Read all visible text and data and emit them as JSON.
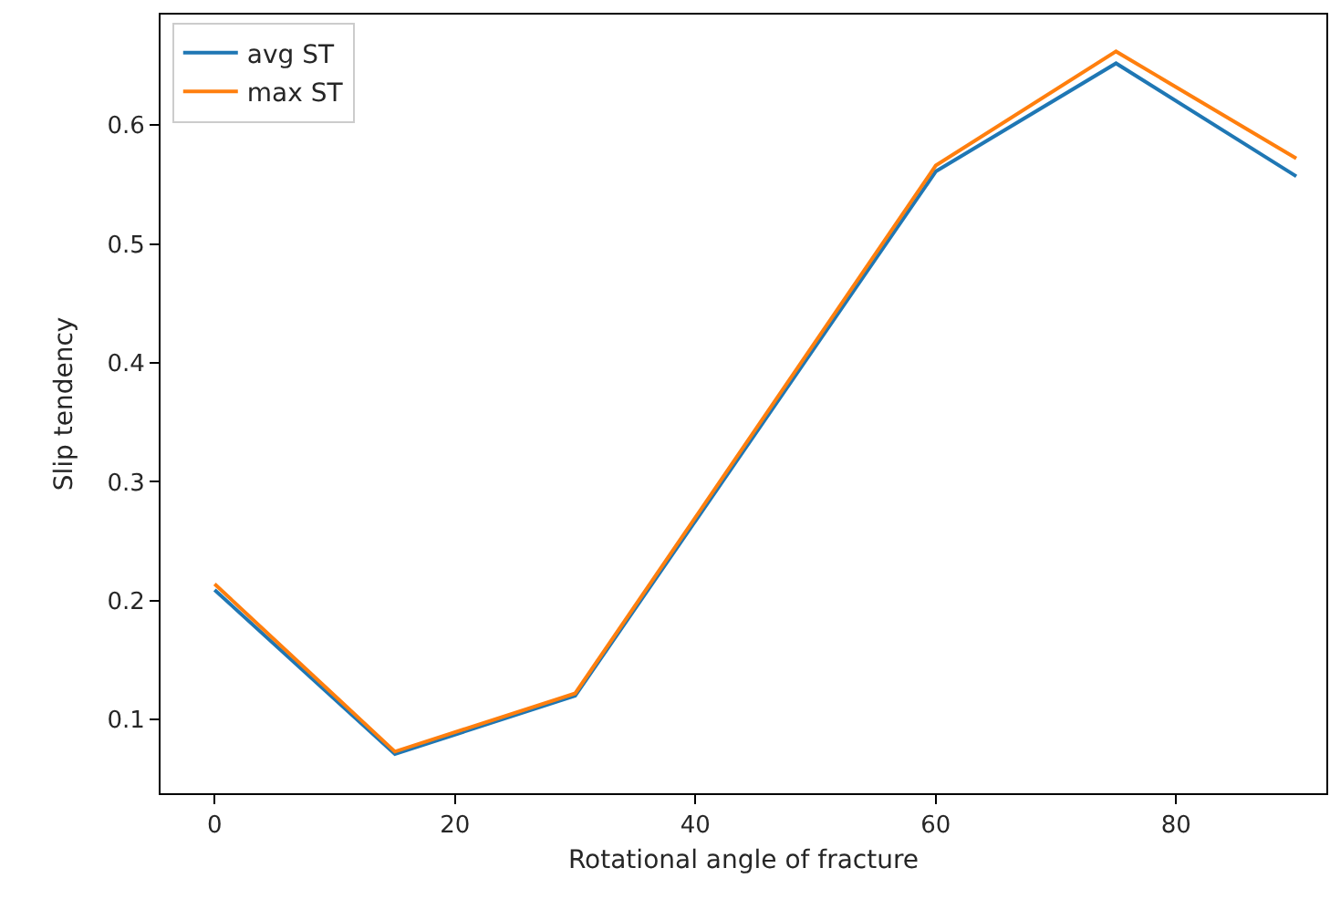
{
  "chart_data": {
    "type": "line",
    "xlabel": "Rotational angle of fracture",
    "ylabel": "Slip tendency",
    "x": [
      0,
      15,
      30,
      60,
      75,
      90
    ],
    "series": [
      {
        "name": "avg ST",
        "color": "#1f77b4",
        "values": [
          0.209,
          0.071,
          0.12,
          0.561,
          0.652,
          0.557
        ]
      },
      {
        "name": "max ST",
        "color": "#ff7f0e",
        "values": [
          0.214,
          0.073,
          0.122,
          0.566,
          0.662,
          0.572
        ]
      }
    ],
    "xlim": [
      -4.5,
      92.5
    ],
    "xticks": [
      0,
      20,
      40,
      60,
      80
    ],
    "ylim": [
      0.038,
      0.693
    ],
    "yticks": [
      0.1,
      0.2,
      0.3,
      0.4,
      0.5,
      0.6
    ],
    "legend": "top left"
  }
}
